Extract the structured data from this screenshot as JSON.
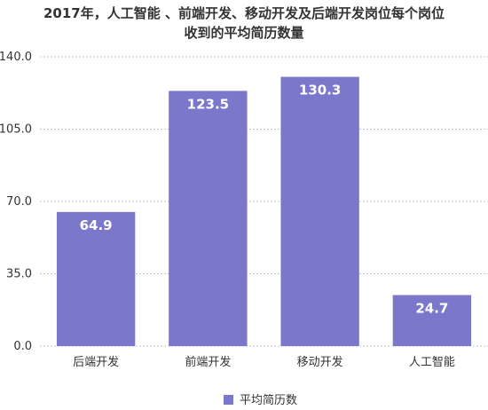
{
  "chart_data": {
    "type": "bar",
    "title_lines": [
      "2017年，人工智能 、前端开发、移动开发及后端开发岗位每个岗位",
      "收到的平均简历数量"
    ],
    "categories": [
      "后端开发",
      "前端开发",
      "移动开发",
      "人工智能"
    ],
    "series": [
      {
        "name": "平均简历数",
        "values": [
          64.9,
          123.5,
          130.3,
          24.7
        ]
      }
    ],
    "data_labels": [
      "64.9",
      "123.5",
      "130.3",
      "24.7"
    ],
    "y_ticks": [
      "0.0",
      "35.0",
      "70.0",
      "105.0",
      "140.0"
    ],
    "ylim": [
      0,
      140
    ],
    "grid": true,
    "legend_position": "bottom",
    "bar_color": "#7b78cc",
    "xlabel": "",
    "ylabel": ""
  }
}
